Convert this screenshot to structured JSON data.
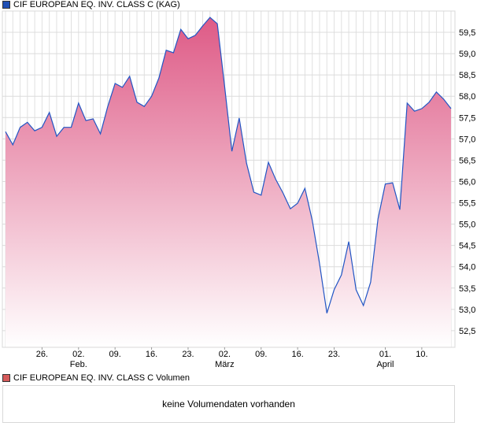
{
  "chart_data": {
    "type": "area",
    "title": "CIF EUROPEAN EQ. INV. CLASS C (KAG)",
    "xlabel": "",
    "ylabel": "",
    "ylim": [
      52.11,
      60.0
    ],
    "grid": true,
    "legend": "top-left",
    "y_ticks": [
      "52,5",
      "53,0",
      "53,5",
      "54,0",
      "54,5",
      "55,0",
      "55,5",
      "56,0",
      "56,5",
      "57,0",
      "57,5",
      "58,0",
      "58,5",
      "59,0",
      "59,5"
    ],
    "y_tick_values": [
      52.5,
      53.0,
      53.5,
      54.0,
      54.5,
      55.0,
      55.5,
      56.0,
      56.5,
      57.0,
      57.5,
      58.0,
      58.5,
      59.0,
      59.5
    ],
    "x_ticks": [
      {
        "index": 5,
        "label": "26.",
        "sub": ""
      },
      {
        "index": 10,
        "label": "02.",
        "sub": "Feb."
      },
      {
        "index": 15,
        "label": "09.",
        "sub": ""
      },
      {
        "index": 20,
        "label": "16.",
        "sub": ""
      },
      {
        "index": 25,
        "label": "23.",
        "sub": ""
      },
      {
        "index": 30,
        "label": "02.",
        "sub": "März"
      },
      {
        "index": 35,
        "label": "09.",
        "sub": ""
      },
      {
        "index": 40,
        "label": "16.",
        "sub": ""
      },
      {
        "index": 45,
        "label": "23.",
        "sub": ""
      },
      {
        "index": 52,
        "label": "01.",
        "sub": "April"
      },
      {
        "index": 57,
        "label": "10.",
        "sub": ""
      }
    ],
    "series": [
      {
        "name": "CIF EUROPEAN EQ. INV. CLASS C (KAG)",
        "values": [
          57.17,
          56.86,
          57.27,
          57.39,
          57.19,
          57.27,
          57.62,
          57.06,
          57.27,
          57.27,
          57.84,
          57.43,
          57.47,
          57.12,
          57.76,
          58.3,
          58.21,
          58.47,
          57.86,
          57.76,
          58.0,
          58.43,
          59.08,
          59.02,
          59.57,
          59.35,
          59.43,
          59.65,
          59.85,
          59.7,
          58.23,
          56.71,
          57.49,
          56.43,
          55.75,
          55.68,
          56.45,
          56.05,
          55.73,
          55.36,
          55.49,
          55.84,
          55.09,
          54.07,
          52.91,
          53.46,
          53.81,
          54.59,
          53.46,
          53.09,
          53.64,
          55.12,
          55.94,
          55.97,
          55.34,
          57.84,
          57.65,
          57.71,
          57.86,
          58.1,
          57.93,
          57.71
        ]
      }
    ]
  },
  "legend_main": "CIF EUROPEAN EQ. INV. CLASS C (KAG)",
  "legend_volume": "CIF EUROPEAN EQ. INV. CLASS C Volumen",
  "volume_message": "keine Volumendaten vorhanden",
  "colors": {
    "line": "#2255c4",
    "fill_top": "#de5a86",
    "fill_bottom": "#ffffff",
    "main_swatch": "#1f4fb5",
    "volume_swatch": "#d65a5a",
    "grid": "#dcdcdc"
  }
}
